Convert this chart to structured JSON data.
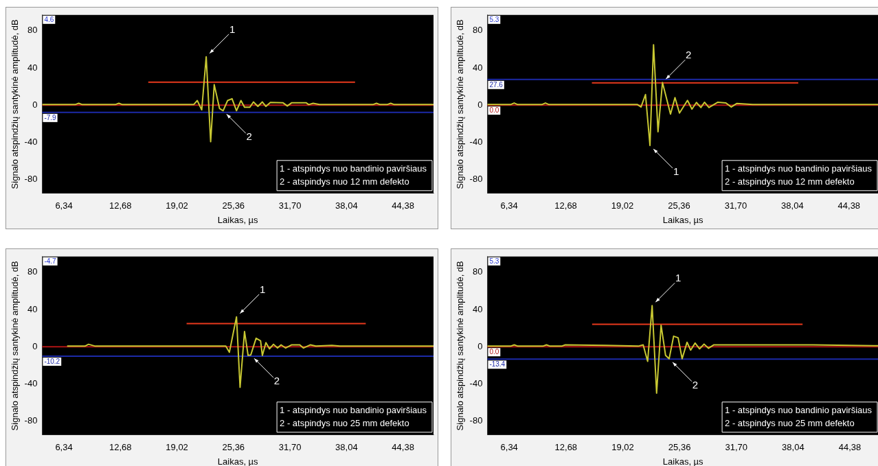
{
  "chart_data": [
    {
      "type": "line",
      "xlabel": "Laikas, µs",
      "ylabel": "Signalo atspindžių santykinė amplitudė, dB",
      "xlim": [
        3.9,
        47.8
      ],
      "ylim": [
        -95,
        97
      ],
      "xticks": [
        {
          "value": 6.34,
          "label": "6,34"
        },
        {
          "value": 12.68,
          "label": "12,68"
        },
        {
          "value": 19.02,
          "label": "19,02"
        },
        {
          "value": 25.36,
          "label": "25,36"
        },
        {
          "value": 31.7,
          "label": "31,70"
        },
        {
          "value": 38.04,
          "label": "38,04"
        },
        {
          "value": 44.38,
          "label": "44,38"
        }
      ],
      "yticks": [
        -80,
        -40,
        0,
        40,
        80
      ],
      "grid": false,
      "legend": false,
      "marker": "none",
      "line_style": "solid",
      "series": [
        {
          "type": "line",
          "color": "#c8c832",
          "x": [
            3.9,
            7.6,
            8.0,
            8.4,
            12.1,
            12.5,
            12.9,
            20.9,
            21.3,
            21.8,
            22.3,
            22.8,
            23.2,
            23.8,
            24.2,
            24.7,
            25.2,
            25.7,
            26.2,
            26.6,
            27.2,
            27.6,
            28.1,
            28.6,
            29.0,
            29.5,
            30.9,
            31.4,
            31.9,
            33.5,
            33.8,
            34.3,
            35.0,
            41.0,
            41.4,
            41.8,
            42.6,
            43.0,
            43.4,
            47.8
          ],
          "values": [
            0.6,
            0.6,
            2,
            0.6,
            0.6,
            2,
            0.6,
            0.6,
            4.9,
            -5.1,
            52,
            -39.4,
            22,
            -3.7,
            -6,
            4.9,
            6.9,
            -6,
            4.9,
            -2.3,
            -2.3,
            3.4,
            -1.4,
            3.4,
            -1.4,
            2.9,
            2.6,
            -0.9,
            2.6,
            2.6,
            0.6,
            2,
            0.6,
            0.6,
            2,
            0.6,
            0.6,
            2,
            0.6,
            0.6
          ]
        },
        {
          "type": "line",
          "color": "#e8391c",
          "x": [
            15.8,
            39.0
          ],
          "values": [
            24.6,
            24.6
          ]
        }
      ],
      "ref_lines": [
        {
          "axis": "y",
          "value": 0,
          "color": "#b01414"
        },
        {
          "axis": "y",
          "value": -7.9,
          "label": "-7.9",
          "color": "#1c2aa8"
        }
      ],
      "annotations": [
        "4.6",
        "1 - atspindys nuo bandinio paviršiaus",
        "2 - atspindys nuo 12 mm defekto",
        {
          "text": "1",
          "x": 22.3,
          "y": 52
        },
        {
          "text": "2",
          "x": 24.2,
          "y": -6
        }
      ]
    },
    {
      "type": "line",
      "xlabel": "Laikas, µs",
      "ylabel": "Signalo atspindžių santykinė amplitudė, dB",
      "xlim": [
        3.9,
        47.7
      ],
      "ylim": [
        -95,
        97
      ],
      "xticks": [
        {
          "value": 6.34,
          "label": "6,34"
        },
        {
          "value": 12.68,
          "label": "12,68"
        },
        {
          "value": 19.02,
          "label": "19,02"
        },
        {
          "value": 25.36,
          "label": "25,36"
        },
        {
          "value": 31.7,
          "label": "31,70"
        },
        {
          "value": 38.04,
          "label": "38,04"
        },
        {
          "value": 44.38,
          "label": "44,38"
        }
      ],
      "yticks": [
        -80,
        -40,
        0,
        40,
        80
      ],
      "grid": false,
      "legend": false,
      "marker": "none",
      "line_style": "solid",
      "series": [
        {
          "type": "line",
          "color": "#c8c832",
          "x": [
            3.9,
            6.5,
            6.9,
            7.3,
            10.0,
            10.4,
            10.8,
            20.7,
            21.1,
            21.6,
            22.1,
            22.5,
            23.0,
            23.5,
            24.4,
            24.9,
            25.4,
            26.3,
            26.8,
            27.3,
            27.8,
            28.2,
            28.7,
            29.7,
            30.6,
            31.2,
            31.8,
            33.6,
            42.0,
            47.7
          ],
          "values": [
            0.6,
            0.6,
            2.3,
            0.6,
            0.6,
            2.3,
            0.6,
            0.6,
            -2,
            11.4,
            -43.4,
            65,
            -28.6,
            24.3,
            -9.7,
            8,
            -8.6,
            5.1,
            -4.3,
            2.9,
            -2.6,
            3.1,
            -2.6,
            3.1,
            2.3,
            -2,
            1.7,
            0.6,
            0.6,
            0.6
          ]
        },
        {
          "type": "line",
          "color": "#e8391c",
          "x": [
            15.6,
            38.7
          ],
          "values": [
            24,
            24
          ]
        }
      ],
      "ref_lines": [
        {
          "axis": "y",
          "value": 0,
          "label": "0.0",
          "color": "#b01414"
        },
        {
          "axis": "y",
          "value": 27.6,
          "label": "27.6",
          "color": "#1c2aa8"
        }
      ],
      "annotations": [
        "5.3",
        "1 - atspindys nuo bandinio paviršiaus",
        "2 - atspindys nuo 12 mm defekto",
        {
          "text": "1",
          "x": 22.1,
          "y": -43.4
        },
        {
          "text": "2",
          "x": 23.5,
          "y": 24.3
        }
      ]
    },
    {
      "type": "line",
      "xlabel": "Laikas, µs",
      "ylabel": "Signalo atspindžių santykinė amplitudė, dB",
      "xlim": [
        3.9,
        47.8
      ],
      "ylim": [
        -95,
        97
      ],
      "xticks": [
        {
          "value": 6.34,
          "label": "6,34"
        },
        {
          "value": 12.68,
          "label": "12,68"
        },
        {
          "value": 19.02,
          "label": "19,02"
        },
        {
          "value": 25.36,
          "label": "25,36"
        },
        {
          "value": 31.7,
          "label": "31,70"
        },
        {
          "value": 38.04,
          "label": "38,04"
        },
        {
          "value": 44.38,
          "label": "44,38"
        }
      ],
      "yticks": [
        -80,
        -40,
        0,
        40,
        80
      ],
      "grid": false,
      "legend": false,
      "marker": "none",
      "line_style": "solid",
      "series": [
        {
          "type": "line",
          "color": "#c8c832",
          "x": [
            6.7,
            8.7,
            9.1,
            9.85,
            24.5,
            24.9,
            25.7,
            26.1,
            26.6,
            27.0,
            27.3,
            27.9,
            28.4,
            28.6,
            29.0,
            29.4,
            29.85,
            30.3,
            30.7,
            31.2,
            31.9,
            32.8,
            33.2,
            34.0,
            34.6,
            36.4,
            37.3,
            47.8
          ],
          "values": [
            0.6,
            0.6,
            2.6,
            0.6,
            0.6,
            -6,
            32,
            -43.7,
            16.3,
            -9.4,
            -8.9,
            9.1,
            6.3,
            -9.4,
            4.3,
            -2.3,
            2.6,
            -1.4,
            2,
            -1.4,
            2,
            2,
            -1.4,
            2,
            0.6,
            1.4,
            0.6,
            0.6
          ]
        },
        {
          "type": "line",
          "color": "#e8391c",
          "x": [
            20.1,
            40.2
          ],
          "values": [
            24.9,
            24.9
          ]
        }
      ],
      "ref_lines": [
        {
          "axis": "y",
          "value": 0,
          "color": "#b01414"
        },
        {
          "axis": "y",
          "value": -10.2,
          "label": "-10.2",
          "color": "#1c2aa8"
        }
      ],
      "annotations": [
        "-4.7",
        "1 - atspindys nuo bandinio paviršiaus",
        "2 - atspindys nuo 25 mm defekto",
        {
          "text": "1",
          "x": 25.7,
          "y": 32
        },
        {
          "text": "2",
          "x": 27.3,
          "y": -8.9
        }
      ]
    },
    {
      "type": "line",
      "xlabel": "Laikas, µs",
      "ylabel": "Signalo atspindžių santykinė amplitudė, dB",
      "xlim": [
        3.9,
        47.6
      ],
      "ylim": [
        -95,
        97
      ],
      "xticks": [
        {
          "value": 6.34,
          "label": "6,34"
        },
        {
          "value": 12.68,
          "label": "12,68"
        },
        {
          "value": 19.02,
          "label": "19,02"
        },
        {
          "value": 25.36,
          "label": "25,36"
        },
        {
          "value": 31.7,
          "label": "31,70"
        },
        {
          "value": 38.04,
          "label": "38,04"
        },
        {
          "value": 44.38,
          "label": "44,38"
        }
      ],
      "yticks": [
        -80,
        -40,
        0,
        40,
        80
      ],
      "grid": false,
      "legend": false,
      "marker": "none",
      "line_style": "solid",
      "series": [
        {
          "type": "line",
          "color": "#c8c832",
          "x": [
            3.9,
            6.5,
            6.9,
            7.3,
            10.1,
            10.5,
            10.9,
            12.2,
            12.6,
            17.1,
            20.75,
            21.3,
            21.8,
            22.3,
            22.8,
            23.3,
            23.8,
            24.2,
            24.7,
            25.2,
            25.65,
            26.2,
            26.6,
            27.1,
            27.6,
            28.1,
            28.6,
            29.2,
            32.2,
            37.0,
            40.3,
            47.6
          ],
          "values": [
            0.6,
            0.6,
            2,
            0.6,
            0.6,
            2,
            0.6,
            0.6,
            2,
            1.4,
            0.6,
            2,
            -15.8,
            44.2,
            -50,
            23.1,
            -9.3,
            -13,
            11.3,
            9.6,
            -13,
            4.8,
            -3.7,
            3.9,
            -2.3,
            2.8,
            -1.7,
            2,
            2,
            2,
            2,
            1
          ]
        },
        {
          "type": "line",
          "color": "#e8391c",
          "x": [
            15.6,
            39.1
          ],
          "values": [
            24.2,
            24.2
          ]
        }
      ],
      "ref_lines": [
        {
          "axis": "y",
          "value": 0,
          "label": "0.0",
          "color": "#b01414"
        },
        {
          "axis": "y",
          "value": -13.4,
          "label": "-13.4",
          "color": "#1c2aa8"
        }
      ],
      "annotations": [
        "5.3",
        "1 - atspindys nuo bandinio paviršiaus",
        "2 - atspindys nuo 25 mm defekto",
        {
          "text": "1",
          "x": 22.3,
          "y": 44.2
        },
        {
          "text": "2",
          "x": 24.2,
          "y": -13
        }
      ]
    }
  ]
}
